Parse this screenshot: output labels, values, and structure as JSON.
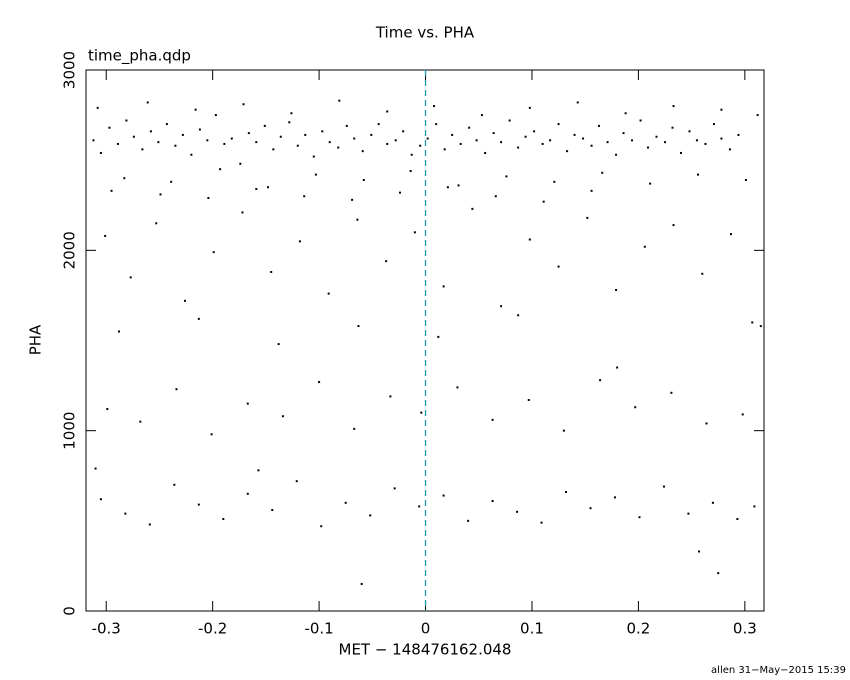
{
  "chart_data": {
    "type": "scatter",
    "title": "Time vs. PHA",
    "subtitle": "time_pha.qdp",
    "x_label": "MET − 148476162.048",
    "y_label": "PHA",
    "footer": "allen 31−May−2015 15:39",
    "xlim": [
      -0.319,
      0.318
    ],
    "ylim": [
      0,
      3000
    ],
    "xticks": [
      -0.3,
      -0.2,
      -0.1,
      0,
      0.1,
      0.2,
      0.3
    ],
    "yticks": [
      0,
      1000,
      2000,
      3000
    ],
    "color": "#000000",
    "vline": {
      "x": 0,
      "color": "#1a9ab0"
    },
    "x": [
      -0.312,
      -0.305,
      -0.297,
      -0.289,
      -0.281,
      -0.274,
      -0.266,
      -0.258,
      -0.251,
      -0.243,
      -0.235,
      -0.228,
      -0.22,
      -0.212,
      -0.205,
      -0.197,
      -0.189,
      -0.182,
      -0.174,
      -0.166,
      -0.159,
      -0.151,
      -0.143,
      -0.136,
      -0.128,
      -0.12,
      -0.113,
      -0.105,
      -0.097,
      -0.09,
      -0.082,
      -0.074,
      -0.067,
      -0.059,
      -0.051,
      -0.044,
      -0.036,
      -0.028,
      -0.021,
      -0.013,
      -0.005,
      0.002,
      0.01,
      0.018,
      0.025,
      0.033,
      0.041,
      0.048,
      0.056,
      0.064,
      0.071,
      0.079,
      0.087,
      0.094,
      0.102,
      0.11,
      0.117,
      0.125,
      0.133,
      0.14,
      0.148,
      0.156,
      0.163,
      0.171,
      0.179,
      0.186,
      0.194,
      0.202,
      0.209,
      0.217,
      0.225,
      0.232,
      0.24,
      0.248,
      0.255,
      0.263,
      0.271,
      0.278,
      0.286,
      0.294,
      -0.308,
      -0.283,
      -0.261,
      -0.239,
      -0.216,
      -0.193,
      -0.171,
      -0.148,
      -0.126,
      -0.103,
      -0.081,
      -0.058,
      -0.036,
      -0.014,
      0.008,
      0.031,
      0.053,
      0.076,
      0.098,
      0.121,
      0.143,
      0.166,
      0.188,
      0.211,
      0.233,
      0.256,
      0.278,
      0.301,
      0.312,
      -0.295,
      -0.249,
      -0.204,
      -0.159,
      -0.114,
      -0.069,
      -0.024,
      0.021,
      0.066,
      0.111,
      0.156,
      -0.301,
      -0.277,
      -0.253,
      -0.226,
      -0.199,
      -0.172,
      -0.145,
      -0.118,
      -0.091,
      -0.064,
      -0.037,
      -0.01,
      0.017,
      0.044,
      0.071,
      0.098,
      0.125,
      0.152,
      0.179,
      0.206,
      0.233,
      0.26,
      0.287,
      0.307,
      -0.288,
      -0.213,
      -0.138,
      -0.063,
      0.012,
      0.087,
      -0.299,
      -0.268,
      -0.234,
      -0.201,
      -0.167,
      -0.134,
      -0.1,
      -0.067,
      -0.033,
      -0.004,
      0.03,
      0.063,
      0.097,
      0.13,
      0.164,
      0.197,
      0.231,
      0.264,
      0.298,
      0.18,
      -0.305,
      -0.282,
      -0.259,
      -0.236,
      -0.213,
      -0.19,
      -0.167,
      -0.144,
      -0.121,
      -0.098,
      -0.075,
      -0.052,
      -0.029,
      -0.006,
      0.017,
      0.04,
      0.063,
      0.086,
      0.109,
      0.132,
      0.155,
      0.178,
      0.201,
      0.224,
      0.247,
      0.27,
      0.293,
      0.309,
      -0.157,
      0.257,
      -0.06,
      0.275,
      -0.31,
      0.315
    ],
    "values": [
      2610,
      2540,
      2680,
      2590,
      2720,
      2630,
      2560,
      2660,
      2600,
      2700,
      2580,
      2640,
      2530,
      2670,
      2610,
      2750,
      2590,
      2620,
      2480,
      2650,
      2600,
      2690,
      2560,
      2630,
      2710,
      2580,
      2640,
      2520,
      2660,
      2600,
      2570,
      2690,
      2620,
      2550,
      2640,
      2700,
      2590,
      2610,
      2660,
      2530,
      2580,
      2620,
      2700,
      2560,
      2640,
      2590,
      2680,
      2610,
      2540,
      2650,
      2600,
      2720,
      2570,
      2630,
      2660,
      2590,
      2610,
      2700,
      2550,
      2640,
      2620,
      2580,
      2690,
      2600,
      2530,
      2650,
      2610,
      2720,
      2570,
      2630,
      2600,
      2680,
      2540,
      2660,
      2610,
      2590,
      2700,
      2620,
      2560,
      2640,
      2790,
      2400,
      2820,
      2380,
      2780,
      2450,
      2810,
      2350,
      2760,
      2420,
      2830,
      2390,
      2770,
      2440,
      2800,
      2360,
      2750,
      2410,
      2790,
      2380,
      2820,
      2430,
      2760,
      2370,
      2800,
      2420,
      2780,
      2390,
      2750,
      2330,
      2310,
      2290,
      2340,
      2300,
      2280,
      2320,
      2350,
      2300,
      2270,
      2330,
      2080,
      1850,
      2150,
      1720,
      1990,
      2210,
      1880,
      2050,
      1760,
      2170,
      1940,
      2100,
      1800,
      2230,
      1690,
      2060,
      1910,
      2180,
      1780,
      2020,
      2140,
      1870,
      2090,
      1600,
      1550,
      1620,
      1480,
      1580,
      1520,
      1640,
      1120,
      1050,
      1230,
      980,
      1150,
      1080,
      1270,
      1010,
      1190,
      1100,
      1240,
      1060,
      1170,
      1000,
      1280,
      1130,
      1210,
      1040,
      1090,
      1350,
      620,
      540,
      480,
      700,
      590,
      510,
      650,
      560,
      720,
      470,
      600,
      530,
      680,
      580,
      640,
      500,
      610,
      550,
      490,
      660,
      570,
      630,
      520,
      690,
      540,
      600,
      510,
      580,
      780,
      330,
      150,
      210,
      790,
      1580
    ]
  }
}
